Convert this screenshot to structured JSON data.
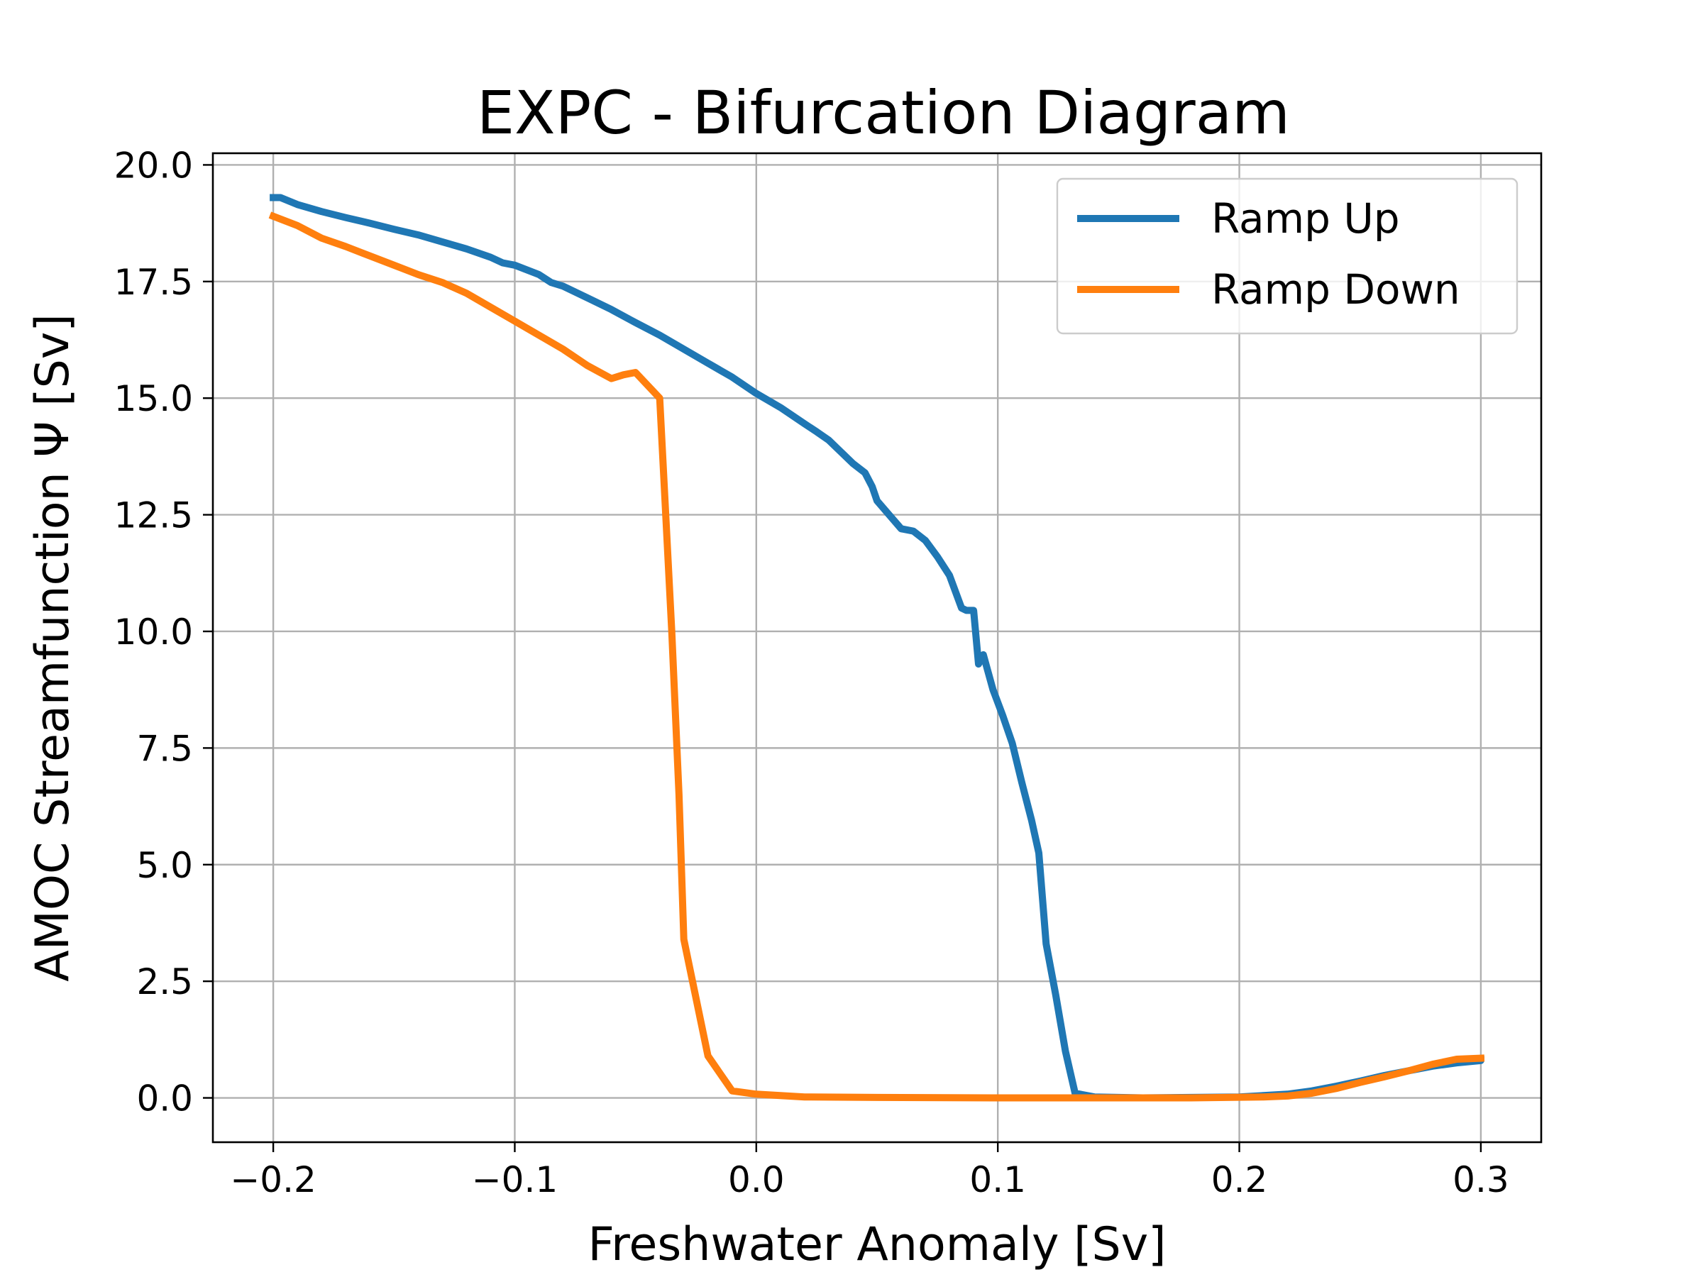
{
  "chart_data": {
    "type": "line",
    "title": "EXPC - Bifurcation Diagram",
    "xlabel": "Freshwater Anomaly [Sv]",
    "ylabel": "AMOC Streamfunction Ψ [Sv]",
    "xlim": [
      -0.225,
      0.325
    ],
    "ylim": [
      -0.95,
      20.25
    ],
    "xticks": [
      -0.2,
      -0.1,
      0.0,
      0.1,
      0.2,
      0.3
    ],
    "xtick_labels": [
      "−0.2",
      "−0.1",
      "0.0",
      "0.1",
      "0.2",
      "0.3"
    ],
    "yticks": [
      0.0,
      2.5,
      5.0,
      7.5,
      10.0,
      12.5,
      15.0,
      17.5,
      20.0
    ],
    "ytick_labels": [
      "0.0",
      "2.5",
      "5.0",
      "7.5",
      "10.0",
      "12.5",
      "15.0",
      "17.5",
      "20.0"
    ],
    "grid": true,
    "legend_position": "top-right",
    "series": [
      {
        "name": "Ramp Up",
        "color": "#1f77b4",
        "points": [
          [
            -0.2,
            19.3
          ],
          [
            -0.197,
            19.3
          ],
          [
            -0.19,
            19.15
          ],
          [
            -0.18,
            19.0
          ],
          [
            -0.17,
            18.87
          ],
          [
            -0.16,
            18.75
          ],
          [
            -0.15,
            18.62
          ],
          [
            -0.14,
            18.5
          ],
          [
            -0.13,
            18.35
          ],
          [
            -0.12,
            18.2
          ],
          [
            -0.11,
            18.02
          ],
          [
            -0.105,
            17.9
          ],
          [
            -0.1,
            17.85
          ],
          [
            -0.09,
            17.65
          ],
          [
            -0.085,
            17.48
          ],
          [
            -0.08,
            17.4
          ],
          [
            -0.07,
            17.15
          ],
          [
            -0.06,
            16.9
          ],
          [
            -0.05,
            16.62
          ],
          [
            -0.04,
            16.35
          ],
          [
            -0.035,
            16.2
          ],
          [
            -0.03,
            16.05
          ],
          [
            -0.02,
            15.75
          ],
          [
            -0.01,
            15.45
          ],
          [
            0.0,
            15.1
          ],
          [
            0.01,
            14.8
          ],
          [
            0.02,
            14.45
          ],
          [
            0.025,
            14.28
          ],
          [
            0.03,
            14.1
          ],
          [
            0.035,
            13.85
          ],
          [
            0.04,
            13.6
          ],
          [
            0.045,
            13.4
          ],
          [
            0.048,
            13.1
          ],
          [
            0.05,
            12.8
          ],
          [
            0.055,
            12.5
          ],
          [
            0.06,
            12.2
          ],
          [
            0.065,
            12.15
          ],
          [
            0.07,
            11.95
          ],
          [
            0.075,
            11.6
          ],
          [
            0.08,
            11.2
          ],
          [
            0.085,
            10.5
          ],
          [
            0.087,
            10.45
          ],
          [
            0.09,
            10.45
          ],
          [
            0.092,
            9.3
          ],
          [
            0.094,
            9.5
          ],
          [
            0.098,
            8.75
          ],
          [
            0.102,
            8.2
          ],
          [
            0.106,
            7.6
          ],
          [
            0.11,
            6.75
          ],
          [
            0.114,
            5.95
          ],
          [
            0.117,
            5.25
          ],
          [
            0.12,
            3.3
          ],
          [
            0.124,
            2.2
          ],
          [
            0.128,
            1.0
          ],
          [
            0.132,
            0.1
          ],
          [
            0.14,
            0.02
          ],
          [
            0.16,
            0.0
          ],
          [
            0.2,
            0.02
          ],
          [
            0.22,
            0.08
          ],
          [
            0.23,
            0.15
          ],
          [
            0.24,
            0.25
          ],
          [
            0.25,
            0.36
          ],
          [
            0.26,
            0.48
          ],
          [
            0.27,
            0.58
          ],
          [
            0.28,
            0.68
          ],
          [
            0.29,
            0.75
          ],
          [
            0.3,
            0.8
          ],
          [
            0.3,
            0.82
          ]
        ]
      },
      {
        "name": "Ramp Down",
        "color": "#ff7f0e",
        "points": [
          [
            0.3,
            0.85
          ],
          [
            0.29,
            0.83
          ],
          [
            0.28,
            0.72
          ],
          [
            0.27,
            0.58
          ],
          [
            0.26,
            0.45
          ],
          [
            0.25,
            0.33
          ],
          [
            0.24,
            0.2
          ],
          [
            0.23,
            0.1
          ],
          [
            0.22,
            0.04
          ],
          [
            0.21,
            0.02
          ],
          [
            0.18,
            0.0
          ],
          [
            0.1,
            0.0
          ],
          [
            0.05,
            0.01
          ],
          [
            0.02,
            0.02
          ],
          [
            0.01,
            0.05
          ],
          [
            0.0,
            0.08
          ],
          [
            -0.01,
            0.15
          ],
          [
            -0.02,
            0.9
          ],
          [
            -0.03,
            3.4
          ],
          [
            -0.032,
            6.5
          ],
          [
            -0.035,
            10.0
          ],
          [
            -0.04,
            15.0
          ],
          [
            -0.05,
            15.55
          ],
          [
            -0.055,
            15.5
          ],
          [
            -0.06,
            15.42
          ],
          [
            -0.07,
            15.7
          ],
          [
            -0.08,
            16.05
          ],
          [
            -0.09,
            16.35
          ],
          [
            -0.1,
            16.65
          ],
          [
            -0.11,
            16.95
          ],
          [
            -0.12,
            17.25
          ],
          [
            -0.13,
            17.48
          ],
          [
            -0.14,
            17.65
          ],
          [
            -0.15,
            17.85
          ],
          [
            -0.16,
            18.05
          ],
          [
            -0.17,
            18.25
          ],
          [
            -0.18,
            18.43
          ],
          [
            -0.19,
            18.7
          ],
          [
            -0.2,
            18.9
          ]
        ]
      }
    ]
  }
}
